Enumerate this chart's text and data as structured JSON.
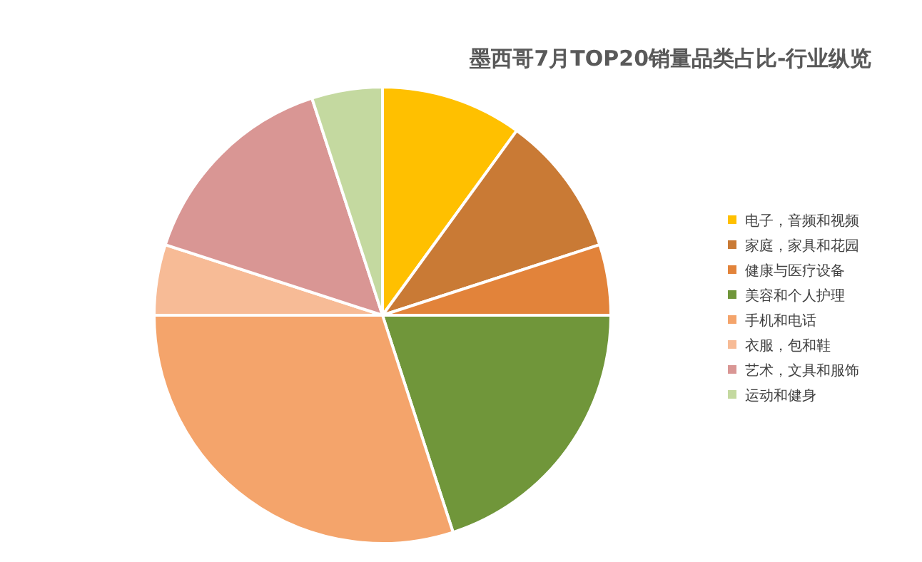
{
  "chart_data": {
    "type": "pie",
    "title": "墨西哥7月TOP20销量品类占比-行业纵览",
    "categories": [
      "电子，音频和视频",
      "家庭，家具和花园",
      "健康与医疗设备",
      "美容和个人护理",
      "手机和电话",
      "衣服，包和鞋",
      "艺术，文具和服饰",
      "运动和健身"
    ],
    "values": [
      10,
      10,
      5,
      20,
      30,
      5,
      15,
      5
    ],
    "colors": [
      "#ffc000",
      "#c97a35",
      "#e2833a",
      "#70963a",
      "#f4a46b",
      "#f7bb96",
      "#d99694",
      "#c4d9a0"
    ],
    "legend": "right"
  }
}
